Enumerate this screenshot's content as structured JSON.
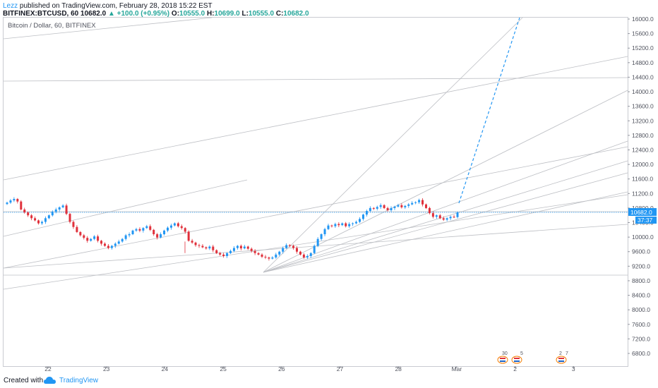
{
  "header": {
    "author": "Lezz",
    "published": "published on TradingView.com, February 28, 2018 15:22 EST",
    "symbol": "BITFINEX:BTCUSD, 60",
    "last": "10682.0",
    "change": "+100.0 (+0.95%)",
    "o_label": "O:",
    "o_value": "10555.0",
    "h_label": "H:",
    "h_value": "10699.0",
    "l_label": "L:",
    "l_value": "10555.0",
    "c_label": "C:",
    "c_value": "10682.0"
  },
  "legend": "Bitcoin / Dollar, 60, BITFINEX",
  "footer": {
    "created": "Created with",
    "brand": "TradingView"
  },
  "colors": {
    "up": "#2196f3",
    "down": "#e0303b",
    "grid": "#bfc1c6",
    "price_line": "#2196f3"
  },
  "event_markers": [
    "30",
    "5",
    "2",
    "7"
  ],
  "chart_data": {
    "type": "candlestick",
    "x_ticks": [
      "22",
      "23",
      "24",
      "25",
      "26",
      "27",
      "28",
      "Mar",
      "2",
      "3"
    ],
    "y_ticks": [
      "6800.0",
      "7200.0",
      "7600.0",
      "8000.0",
      "8400.0",
      "8800.0",
      "9200.0",
      "9600.0",
      "10000.0",
      "10400.0",
      "10800.0",
      "11200.0",
      "11600.0",
      "12000.0",
      "12400.0",
      "12800.0",
      "13200.0",
      "13600.0",
      "14000.0",
      "14400.0",
      "14800.0",
      "15200.0",
      "15600.0",
      "16000.0"
    ],
    "ylim": [
      6550,
      16100
    ],
    "last_price_label": "10682.0",
    "countdown_label": "37:37",
    "closes": [
      10950,
      11010,
      11050,
      10980,
      10760,
      10680,
      10600,
      10520,
      10460,
      10380,
      10420,
      10520,
      10600,
      10700,
      10760,
      10820,
      10870,
      10640,
      10420,
      10280,
      10140,
      10050,
      9980,
      9900,
      9950,
      10020,
      9900,
      9820,
      9760,
      9700,
      9760,
      9820,
      9880,
      9950,
      10050,
      10080,
      10180,
      10220,
      10180,
      10250,
      10300,
      10200,
      10080,
      9990,
      10080,
      10180,
      10260,
      10320,
      10380,
      10300,
      10250,
      10150,
      9900,
      9850,
      9780,
      9760,
      9720,
      9690,
      9740,
      9640,
      9560,
      9520,
      9480,
      9560,
      9620,
      9700,
      9760,
      9690,
      9740,
      9680,
      9620,
      9560,
      9520,
      9460,
      9440,
      9410,
      9440,
      9520,
      9600,
      9700,
      9780,
      9760,
      9700,
      9600,
      9520,
      9440,
      9480,
      9560,
      9760,
      9950,
      10080,
      10220,
      10320,
      10300,
      10360,
      10330,
      10380,
      10300,
      10360,
      10380,
      10420,
      10500,
      10620,
      10720,
      10800,
      10780,
      10830,
      10880,
      10800,
      10740,
      10800,
      10840,
      10880,
      10820,
      10860,
      10900,
      10940,
      10960,
      11020,
      10900,
      10800,
      10660,
      10560,
      10600,
      10520,
      10480,
      10520,
      10560,
      10550,
      10682
    ],
    "last_index": 129
  }
}
